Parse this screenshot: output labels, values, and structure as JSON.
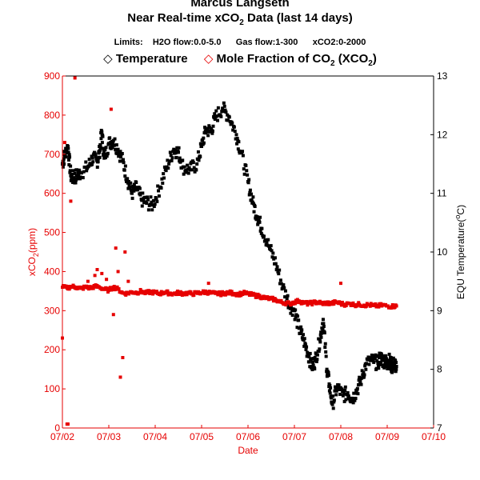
{
  "chart_data": {
    "type": "scatter",
    "title": "Marcus Langseth",
    "subtitle_prefix": "Near Real-time xCO",
    "subtitle_sub": "2",
    "subtitle_suffix": " Data (last 14 days)",
    "limits_text": "Limits:    H2O flow:0.0-5.0      Gas flow:1-300      xCO2:0-2000",
    "legend": [
      {
        "symbol": "◇",
        "label": "Temperature",
        "color": "#000000"
      },
      {
        "symbol": "◇",
        "label_prefix": "Mole Fraction of CO",
        "label_sub": "2",
        "label_mid": " (XCO",
        "label_sub2": "2",
        "label_suffix": ")",
        "color": "#e60000"
      }
    ],
    "xlabel": "Date",
    "ylabel_left": "xCO2(ppm)",
    "ylabel_left_parts": {
      "prefix": "xCO",
      "sub": "2",
      "suffix": "(ppm)"
    },
    "ylabel_right": "EQU Temperature(°C)",
    "ylabel_right_parts": {
      "prefix": "EQU Temperature(",
      "sup": "o",
      "suffix": "C)"
    },
    "x_ticks": [
      "07/02",
      "07/03",
      "07/04",
      "07/05",
      "07/06",
      "07/07",
      "07/08",
      "07/09",
      "07/10"
    ],
    "xlim": [
      0,
      8
    ],
    "ylim_left": [
      0,
      900
    ],
    "yticks_left": [
      "0",
      "100",
      "200",
      "300",
      "400",
      "500",
      "600",
      "700",
      "800",
      "900"
    ],
    "ylim_right": [
      7,
      13
    ],
    "yticks_right": [
      "7",
      "8",
      "9",
      "10",
      "11",
      "12",
      "13"
    ],
    "colors": {
      "left_axis": "#e60000",
      "right_axis": "#000000",
      "xco2": "#e60000",
      "temperature": "#000000"
    },
    "series": [
      {
        "name": "Temperature",
        "axis": "right",
        "x_units": "days since 07/02",
        "x": [
          0.0,
          0.05,
          0.12,
          0.18,
          0.25,
          0.3,
          0.4,
          0.55,
          0.65,
          0.75,
          0.8,
          0.85,
          0.9,
          1.0,
          1.1,
          1.2,
          1.3,
          1.4,
          1.5,
          1.6,
          1.7,
          1.8,
          1.95,
          2.1,
          2.25,
          2.4,
          2.5,
          2.6,
          2.75,
          2.9,
          3.0,
          3.1,
          3.2,
          3.3,
          3.45,
          3.6,
          3.75,
          3.85,
          4.0,
          4.1,
          4.2,
          4.3,
          4.45,
          4.6,
          4.75,
          4.9,
          5.0,
          5.1,
          5.2,
          5.3,
          5.38,
          5.45,
          5.55,
          5.62,
          5.7,
          5.75,
          5.82,
          5.92,
          6.05,
          6.15,
          6.25,
          6.35,
          6.45,
          6.55,
          6.7,
          6.8,
          6.85,
          6.9,
          6.95,
          7.0,
          7.05,
          7.1,
          7.15,
          7.2
        ],
        "y": [
          11.5,
          11.65,
          11.8,
          11.3,
          11.25,
          11.3,
          11.35,
          11.45,
          11.6,
          11.55,
          11.7,
          12.05,
          11.6,
          11.85,
          11.9,
          11.75,
          11.55,
          11.25,
          11.0,
          11.1,
          10.9,
          10.85,
          10.8,
          11.1,
          11.45,
          11.75,
          11.7,
          11.45,
          11.4,
          11.5,
          11.8,
          12.1,
          12.05,
          12.3,
          12.45,
          12.3,
          12.0,
          11.7,
          11.2,
          10.85,
          10.6,
          10.4,
          10.1,
          9.8,
          9.4,
          9.1,
          9.0,
          8.7,
          8.5,
          8.25,
          8.05,
          8.15,
          8.5,
          8.85,
          8.0,
          7.75,
          7.4,
          7.7,
          7.55,
          7.6,
          7.5,
          7.65,
          7.85,
          8.1,
          8.15,
          8.1,
          8.2,
          8.15,
          8.15,
          8.1,
          8.15,
          8.05,
          8.1,
          8.05
        ]
      },
      {
        "name": "Mole Fraction of CO2 (XCO2)",
        "axis": "left",
        "x_units": "days since 07/02",
        "x": [
          0.0,
          0.1,
          0.2,
          0.3,
          0.4,
          0.5,
          0.6,
          0.7,
          0.8,
          0.9,
          1.0,
          1.1,
          1.2,
          1.3,
          1.4,
          1.5,
          1.6,
          1.7,
          1.8,
          1.9,
          2.0,
          2.1,
          2.2,
          2.3,
          2.4,
          2.5,
          2.6,
          2.7,
          2.8,
          2.9,
          3.0,
          3.1,
          3.2,
          3.3,
          3.4,
          3.5,
          3.6,
          3.7,
          3.8,
          3.9,
          4.0,
          4.1,
          4.2,
          4.3,
          4.4,
          4.5,
          4.6,
          4.7,
          4.8,
          4.9,
          5.0,
          5.1,
          5.2,
          5.3,
          5.4,
          5.5,
          5.6,
          5.7,
          5.8,
          5.9,
          6.0,
          6.1,
          6.2,
          6.3,
          6.4,
          6.5,
          6.6,
          6.7,
          6.8,
          6.9,
          7.0,
          7.1,
          7.2
        ],
        "y": [
          360,
          358,
          362,
          360,
          357,
          360,
          358,
          362,
          360,
          355,
          352,
          360,
          355,
          345,
          344,
          348,
          346,
          350,
          345,
          348,
          346,
          344,
          347,
          345,
          343,
          346,
          344,
          345,
          343,
          345,
          346,
          348,
          345,
          344,
          343,
          345,
          346,
          344,
          342,
          345,
          343,
          340,
          338,
          335,
          332,
          330,
          328,
          322,
          320,
          318,
          322,
          325,
          320,
          318,
          320,
          322,
          318,
          320,
          318,
          322,
          318,
          316,
          318,
          315,
          316,
          314,
          315,
          313,
          312,
          314,
          312,
          311,
          312
        ]
      },
      {
        "name": "XCO2 outliers",
        "axis": "left",
        "x": [
          0.0,
          0.05,
          0.1,
          0.12,
          0.18,
          0.27,
          0.55,
          0.7,
          0.75,
          0.85,
          0.95,
          1.05,
          1.1,
          1.15,
          1.2,
          1.25,
          1.3,
          1.35,
          1.42,
          3.15,
          6.0
        ],
        "y": [
          230,
          730,
          10,
          10,
          580,
          895,
          375,
          390,
          405,
          395,
          380,
          815,
          290,
          460,
          400,
          130,
          180,
          450,
          375,
          370,
          370
        ]
      }
    ]
  }
}
